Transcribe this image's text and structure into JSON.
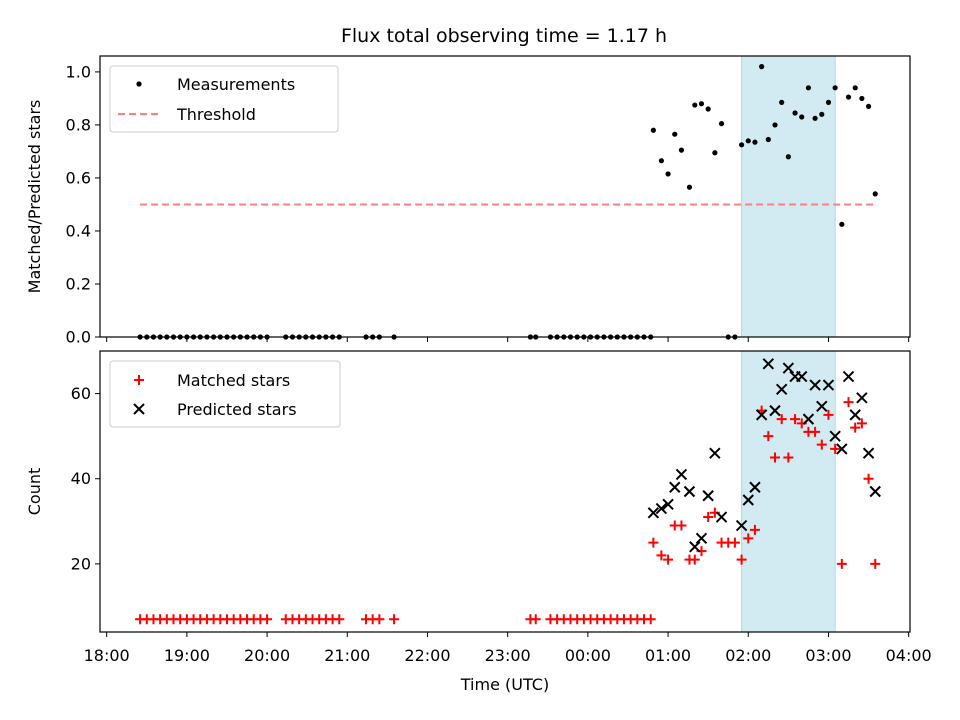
{
  "chart_data": [
    {
      "type": "scatter",
      "title": "Flux total observing time = 1.17 h",
      "xlabel": "",
      "ylabel": "Matched/Predicted stars",
      "ylim": [
        0,
        1.06
      ],
      "xlim": [
        "17:55",
        "04:01"
      ],
      "yticks": [
        "0.0",
        "0.2",
        "0.4",
        "0.6",
        "0.8",
        "1.0"
      ],
      "legend_position": "top-left",
      "shaded_interval": {
        "start": "01:55",
        "end": "03:05",
        "color": "#add8e6"
      },
      "series": [
        {
          "name": "Measurements",
          "marker": "dot",
          "color": "#000000",
          "points": [
            [
              "18:25",
              0
            ],
            [
              "18:30",
              0
            ],
            [
              "18:35",
              0
            ],
            [
              "18:40",
              0
            ],
            [
              "18:45",
              0
            ],
            [
              "18:50",
              0
            ],
            [
              "18:55",
              0
            ],
            [
              "19:00",
              0
            ],
            [
              "19:05",
              0
            ],
            [
              "19:10",
              0
            ],
            [
              "19:15",
              0
            ],
            [
              "19:20",
              0
            ],
            [
              "19:25",
              0
            ],
            [
              "19:30",
              0
            ],
            [
              "19:35",
              0
            ],
            [
              "19:40",
              0
            ],
            [
              "19:45",
              0
            ],
            [
              "19:50",
              0
            ],
            [
              "19:55",
              0
            ],
            [
              "20:00",
              0
            ],
            [
              "20:14",
              0
            ],
            [
              "20:19",
              0
            ],
            [
              "20:24",
              0
            ],
            [
              "20:29",
              0
            ],
            [
              "20:34",
              0
            ],
            [
              "20:39",
              0
            ],
            [
              "20:44",
              0
            ],
            [
              "20:49",
              0
            ],
            [
              "20:54",
              0
            ],
            [
              "21:14",
              0
            ],
            [
              "21:19",
              0
            ],
            [
              "21:24",
              0
            ],
            [
              "21:35",
              0
            ],
            [
              "23:17",
              0
            ],
            [
              "23:21",
              0
            ],
            [
              "23:32",
              0
            ],
            [
              "23:37",
              0
            ],
            [
              "23:42",
              0
            ],
            [
              "23:47",
              0
            ],
            [
              "23:52",
              0
            ],
            [
              "23:57",
              0
            ],
            [
              "00:02",
              0
            ],
            [
              "00:07",
              0
            ],
            [
              "00:12",
              0
            ],
            [
              "00:17",
              0
            ],
            [
              "00:22",
              0
            ],
            [
              "00:27",
              0
            ],
            [
              "00:32",
              0
            ],
            [
              "00:37",
              0
            ],
            [
              "00:42",
              0
            ],
            [
              "00:47",
              0
            ],
            [
              "00:49",
              0.78
            ],
            [
              "00:55",
              0.665
            ],
            [
              "01:00",
              0.615
            ],
            [
              "01:05",
              0.765
            ],
            [
              "01:10",
              0.705
            ],
            [
              "01:16",
              0.565
            ],
            [
              "01:20",
              0.875
            ],
            [
              "01:25",
              0.88
            ],
            [
              "01:30",
              0.86
            ],
            [
              "01:35",
              0.695
            ],
            [
              "01:40",
              0.805
            ],
            [
              "01:45",
              0
            ],
            [
              "01:50",
              0
            ],
            [
              "01:55",
              0.725
            ],
            [
              "02:00",
              0.74
            ],
            [
              "02:05",
              0.735
            ],
            [
              "02:10",
              1.02
            ],
            [
              "02:15",
              0.745
            ],
            [
              "02:20",
              0.8
            ],
            [
              "02:25",
              0.885
            ],
            [
              "02:30",
              0.68
            ],
            [
              "02:35",
              0.845
            ],
            [
              "02:40",
              0.83
            ],
            [
              "02:45",
              0.94
            ],
            [
              "02:50",
              0.825
            ],
            [
              "02:55",
              0.84
            ],
            [
              "03:00",
              0.885
            ],
            [
              "03:05",
              0.94
            ],
            [
              "03:10",
              0.425
            ],
            [
              "03:15",
              0.905
            ],
            [
              "03:20",
              0.94
            ],
            [
              "03:25",
              0.9
            ],
            [
              "03:30",
              0.87
            ],
            [
              "03:35",
              0.54
            ]
          ]
        },
        {
          "name": "Threshold",
          "marker": "dashed-line",
          "color": "#ff7f7f",
          "points": [
            [
              "18:25",
              0.5
            ],
            [
              "03:35",
              0.5
            ]
          ]
        }
      ]
    },
    {
      "type": "scatter",
      "title": "",
      "xlabel": "Time (UTC)",
      "ylabel": "Count",
      "ylim": [
        4,
        70
      ],
      "xlim": [
        "17:55",
        "04:01"
      ],
      "yticks": [
        "20",
        "40",
        "60"
      ],
      "xticks": [
        "18:00",
        "19:00",
        "20:00",
        "21:00",
        "22:00",
        "23:00",
        "00:00",
        "01:00",
        "02:00",
        "03:00",
        "04:00"
      ],
      "legend_position": "top-left",
      "shaded_interval": {
        "start": "01:55",
        "end": "03:05",
        "color": "#add8e6"
      },
      "series": [
        {
          "name": "Matched stars",
          "marker": "plus",
          "color": "#ff0000",
          "points": [
            [
              "18:25",
              7
            ],
            [
              "18:30",
              7
            ],
            [
              "18:35",
              7
            ],
            [
              "18:40",
              7
            ],
            [
              "18:45",
              7
            ],
            [
              "18:50",
              7
            ],
            [
              "18:55",
              7
            ],
            [
              "19:00",
              7
            ],
            [
              "19:05",
              7
            ],
            [
              "19:10",
              7
            ],
            [
              "19:15",
              7
            ],
            [
              "19:20",
              7
            ],
            [
              "19:25",
              7
            ],
            [
              "19:30",
              7
            ],
            [
              "19:35",
              7
            ],
            [
              "19:40",
              7
            ],
            [
              "19:45",
              7
            ],
            [
              "19:50",
              7
            ],
            [
              "19:55",
              7
            ],
            [
              "20:00",
              7
            ],
            [
              "20:14",
              7
            ],
            [
              "20:19",
              7
            ],
            [
              "20:24",
              7
            ],
            [
              "20:29",
              7
            ],
            [
              "20:34",
              7
            ],
            [
              "20:39",
              7
            ],
            [
              "20:44",
              7
            ],
            [
              "20:49",
              7
            ],
            [
              "20:54",
              7
            ],
            [
              "21:14",
              7
            ],
            [
              "21:19",
              7
            ],
            [
              "21:24",
              7
            ],
            [
              "21:35",
              7
            ],
            [
              "23:17",
              7
            ],
            [
              "23:21",
              7
            ],
            [
              "23:32",
              7
            ],
            [
              "23:37",
              7
            ],
            [
              "23:42",
              7
            ],
            [
              "23:47",
              7
            ],
            [
              "23:52",
              7
            ],
            [
              "23:57",
              7
            ],
            [
              "00:02",
              7
            ],
            [
              "00:07",
              7
            ],
            [
              "00:12",
              7
            ],
            [
              "00:17",
              7
            ],
            [
              "00:22",
              7
            ],
            [
              "00:27",
              7
            ],
            [
              "00:32",
              7
            ],
            [
              "00:37",
              7
            ],
            [
              "00:42",
              7
            ],
            [
              "00:47",
              7
            ],
            [
              "00:49",
              25
            ],
            [
              "00:55",
              22
            ],
            [
              "01:00",
              21
            ],
            [
              "01:05",
              29
            ],
            [
              "01:10",
              29
            ],
            [
              "01:16",
              21
            ],
            [
              "01:20",
              21
            ],
            [
              "01:25",
              23
            ],
            [
              "01:30",
              31
            ],
            [
              "01:35",
              32
            ],
            [
              "01:40",
              25
            ],
            [
              "01:45",
              25
            ],
            [
              "01:50",
              25
            ],
            [
              "01:55",
              21
            ],
            [
              "02:00",
              26
            ],
            [
              "02:05",
              28
            ],
            [
              "02:10",
              56
            ],
            [
              "02:15",
              50
            ],
            [
              "02:20",
              45
            ],
            [
              "02:25",
              54
            ],
            [
              "02:30",
              45
            ],
            [
              "02:35",
              54
            ],
            [
              "02:40",
              53
            ],
            [
              "02:45",
              51
            ],
            [
              "02:50",
              51
            ],
            [
              "02:55",
              48
            ],
            [
              "03:00",
              55
            ],
            [
              "03:05",
              47
            ],
            [
              "03:10",
              20
            ],
            [
              "03:15",
              58
            ],
            [
              "03:20",
              52
            ],
            [
              "03:25",
              53
            ],
            [
              "03:30",
              40
            ],
            [
              "03:35",
              20
            ]
          ]
        },
        {
          "name": "Predicted stars",
          "marker": "x",
          "color": "#000000",
          "points": [
            [
              "00:49",
              32
            ],
            [
              "00:55",
              33
            ],
            [
              "01:00",
              34
            ],
            [
              "01:05",
              38
            ],
            [
              "01:10",
              41
            ],
            [
              "01:16",
              37
            ],
            [
              "01:20",
              24
            ],
            [
              "01:25",
              26
            ],
            [
              "01:30",
              36
            ],
            [
              "01:35",
              46
            ],
            [
              "01:40",
              31
            ],
            [
              "01:55",
              29
            ],
            [
              "02:00",
              35
            ],
            [
              "02:05",
              38
            ],
            [
              "02:10",
              55
            ],
            [
              "02:15",
              67
            ],
            [
              "02:20",
              56
            ],
            [
              "02:25",
              61
            ],
            [
              "02:30",
              66
            ],
            [
              "02:35",
              64
            ],
            [
              "02:40",
              64
            ],
            [
              "02:45",
              54
            ],
            [
              "02:50",
              62
            ],
            [
              "02:55",
              57
            ],
            [
              "03:00",
              62
            ],
            [
              "03:05",
              50
            ],
            [
              "03:10",
              47
            ],
            [
              "03:15",
              64
            ],
            [
              "03:20",
              55
            ],
            [
              "03:25",
              59
            ],
            [
              "03:30",
              46
            ],
            [
              "03:35",
              37
            ]
          ]
        }
      ]
    }
  ]
}
